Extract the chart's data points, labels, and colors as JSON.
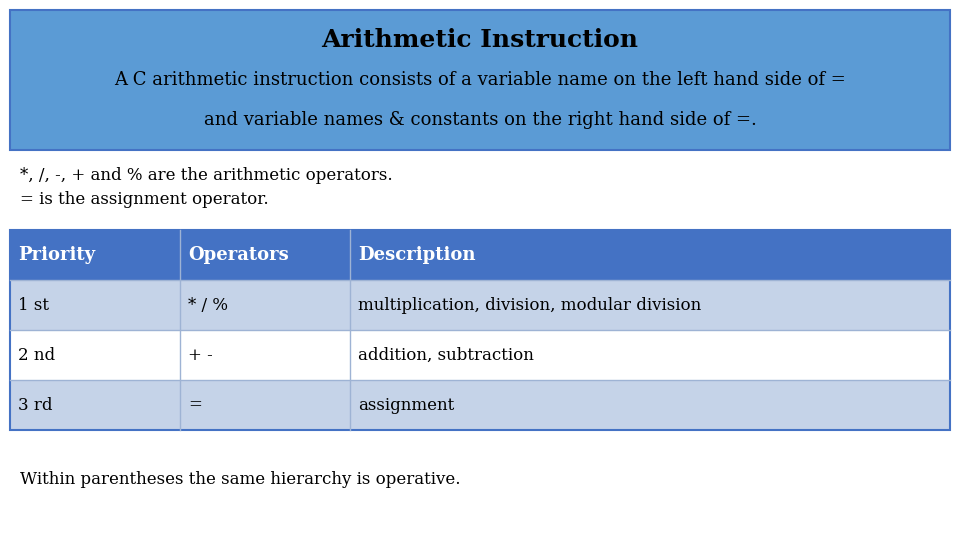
{
  "title": "Arithmetic Instruction",
  "subtitle_line1": "A C arithmetic instruction consists of a variable name on the left hand side of =",
  "subtitle_line2": "and variable names & constants on the right hand side of =.",
  "header_bg_color": "#5B9BD5",
  "header_text_color": "#000000",
  "body_bg_color": "#FFFFFF",
  "text_line1": "*, /, -, + and % are the arithmetic operators.",
  "text_line2": "= is the assignment operator.",
  "footer_text": "Within parentheses the same hierarchy is operative.",
  "table_header": [
    "Priority",
    "Operators",
    "Description"
  ],
  "table_rows": [
    [
      "1 st",
      "* / %",
      "multiplication, division, modular division"
    ],
    [
      "2 nd",
      "+ -",
      "addition, subtraction"
    ],
    [
      "3 rd",
      "=",
      "assignment"
    ]
  ],
  "table_header_bg": "#4472C4",
  "table_header_text": "#FFFFFF",
  "table_row_bg_odd": "#FFFFFF",
  "table_row_bg_even": "#C5D3E8",
  "table_border_color": "#4472C4",
  "table_divider_color": "#9EB3D4"
}
